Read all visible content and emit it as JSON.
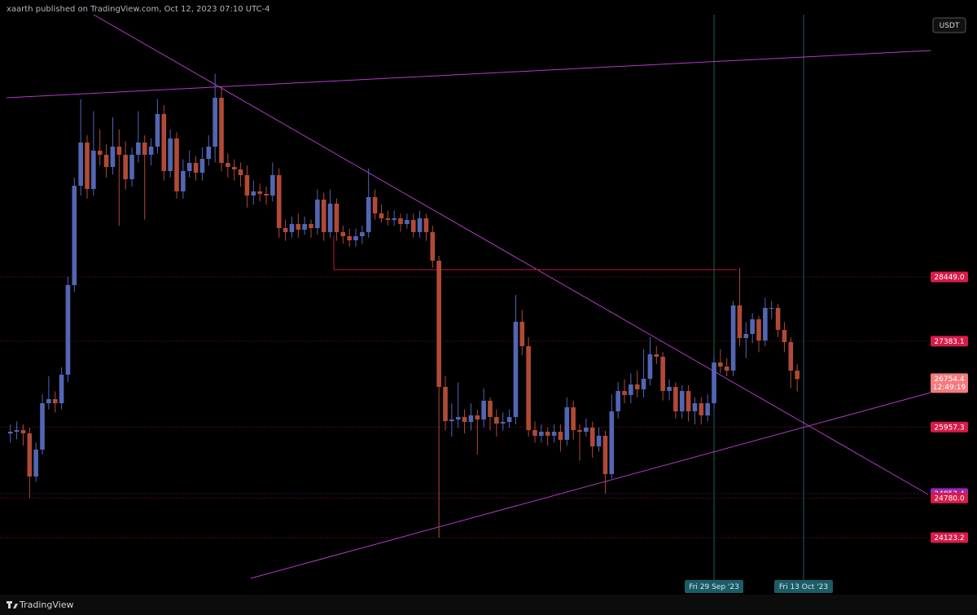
{
  "header": {
    "text": "xaarth published on TradingView.com, Oct 12, 2023 07:10 UTC-4"
  },
  "footer": {
    "logo": "TradingView"
  },
  "chart_data": {
    "type": "candlestick",
    "currency": "USDT",
    "up_color": "#5266b4",
    "down_color": "#b04a36",
    "ylim": [
      23176,
      33046
    ],
    "categories": [
      null,
      null,
      null,
      null,
      null,
      null,
      null,
      null,
      null,
      null,
      null,
      null,
      null,
      null,
      null,
      null,
      null,
      null,
      null,
      null,
      null,
      null,
      null,
      null,
      null,
      null,
      null,
      null,
      null,
      null,
      null,
      null,
      null,
      null,
      null,
      null,
      null,
      null,
      null,
      null,
      null,
      null,
      null,
      null,
      null,
      null,
      null,
      null,
      null,
      null,
      null,
      null,
      null,
      null,
      null,
      null,
      null,
      null,
      null,
      null,
      null,
      null,
      null,
      null,
      null,
      null,
      null,
      null,
      null,
      null,
      null,
      null,
      null,
      null,
      null,
      null,
      null,
      null,
      null,
      null,
      null,
      null,
      null,
      null,
      null,
      null,
      null,
      null,
      null,
      null,
      null,
      null,
      null,
      null,
      null,
      null,
      null,
      null,
      null,
      null,
      null,
      null,
      null,
      null,
      null,
      null,
      null,
      null,
      null,
      null,
      "Fri 29 Sep '23",
      null,
      null,
      null,
      null,
      null,
      null,
      null,
      null,
      null,
      null,
      null,
      null,
      null,
      "Fri 13 Oct '23"
    ],
    "ohlc": [
      [
        25850,
        26000,
        25700,
        25880
      ],
      [
        25880,
        26050,
        25750,
        25907
      ],
      [
        25907,
        26000,
        25650,
        25853
      ],
      [
        25853,
        25950,
        24780,
        25137
      ],
      [
        25137,
        25700,
        25050,
        25583
      ],
      [
        25583,
        26500,
        25500,
        26353
      ],
      [
        26353,
        26800,
        26250,
        26421
      ],
      [
        26421,
        26550,
        26200,
        26353
      ],
      [
        26353,
        26950,
        26250,
        26827
      ],
      [
        26827,
        28450,
        26700,
        28314
      ],
      [
        28314,
        30100,
        28200,
        29963
      ],
      [
        29963,
        31400,
        29800,
        30680
      ],
      [
        30680,
        30800,
        29750,
        29909
      ],
      [
        29909,
        31200,
        29800,
        30545
      ],
      [
        30545,
        30900,
        30300,
        30477
      ],
      [
        30477,
        30650,
        30100,
        30274
      ],
      [
        30274,
        31100,
        30150,
        30612
      ],
      [
        30612,
        30900,
        29300,
        30477
      ],
      [
        30477,
        30700,
        29900,
        30071
      ],
      [
        30071,
        30600,
        29950,
        30477
      ],
      [
        30477,
        31200,
        30350,
        30680
      ],
      [
        30680,
        30800,
        29400,
        30477
      ],
      [
        30477,
        30750,
        30300,
        30612
      ],
      [
        30612,
        31400,
        30500,
        31153
      ],
      [
        31153,
        31300,
        30050,
        30207
      ],
      [
        30207,
        30900,
        30100,
        30747
      ],
      [
        30747,
        30850,
        29750,
        29869
      ],
      [
        29869,
        30400,
        29750,
        30207
      ],
      [
        30207,
        30550,
        30100,
        30342
      ],
      [
        30342,
        30450,
        30050,
        30180
      ],
      [
        30180,
        30600,
        30050,
        30409
      ],
      [
        30409,
        30800,
        30300,
        30612
      ],
      [
        30612,
        31823,
        30350,
        31423
      ],
      [
        31423,
        31600,
        30200,
        30342
      ],
      [
        30342,
        30500,
        30100,
        30274
      ],
      [
        30274,
        30400,
        30050,
        30234
      ],
      [
        30234,
        30350,
        29950,
        30139
      ],
      [
        30139,
        30300,
        29600,
        29801
      ],
      [
        29801,
        30050,
        29650,
        29869
      ],
      [
        29869,
        30000,
        29700,
        29828
      ],
      [
        29828,
        29950,
        29650,
        29801
      ],
      [
        29801,
        30350,
        29700,
        30139
      ],
      [
        30139,
        30250,
        29100,
        29260
      ],
      [
        29260,
        29400,
        29050,
        29193
      ],
      [
        29193,
        29450,
        29100,
        29328
      ],
      [
        29328,
        29500,
        29100,
        29233
      ],
      [
        29233,
        29450,
        29150,
        29328
      ],
      [
        29328,
        29400,
        29100,
        29260
      ],
      [
        29260,
        29900,
        29150,
        29733
      ],
      [
        29733,
        29850,
        29050,
        29193
      ],
      [
        29193,
        29900,
        29100,
        29666
      ],
      [
        29666,
        29750,
        29050,
        29193
      ],
      [
        29193,
        29300,
        29000,
        29125
      ],
      [
        29125,
        29250,
        28950,
        29057
      ],
      [
        29057,
        29250,
        28950,
        29125
      ],
      [
        29125,
        29300,
        29000,
        29193
      ],
      [
        29193,
        30250,
        29100,
        29774
      ],
      [
        29774,
        29900,
        29400,
        29504
      ],
      [
        29504,
        29650,
        29350,
        29422
      ],
      [
        29422,
        29550,
        29300,
        29395
      ],
      [
        29395,
        29550,
        29300,
        29422
      ],
      [
        29422,
        29500,
        29200,
        29328
      ],
      [
        29328,
        29500,
        29250,
        29395
      ],
      [
        29395,
        29500,
        29100,
        29193
      ],
      [
        29193,
        29550,
        29100,
        29422
      ],
      [
        29422,
        29500,
        29050,
        29193
      ],
      [
        29193,
        29300,
        28600,
        28719
      ],
      [
        28719,
        28800,
        24123.2,
        26624
      ],
      [
        26624,
        26800,
        25900,
        26056
      ],
      [
        26056,
        26350,
        25800,
        26083
      ],
      [
        26083,
        26700,
        25950,
        26124
      ],
      [
        26124,
        26250,
        25850,
        26042
      ],
      [
        26042,
        26350,
        25900,
        26151
      ],
      [
        26151,
        26250,
        25500,
        26083
      ],
      [
        26083,
        26600,
        25950,
        26394
      ],
      [
        26394,
        26450,
        25900,
        26124
      ],
      [
        26124,
        26250,
        25800,
        26015
      ],
      [
        26015,
        26200,
        25900,
        26042
      ],
      [
        26042,
        26250,
        25950,
        26124
      ],
      [
        26124,
        28150,
        26000,
        27705
      ],
      [
        27705,
        27900,
        27150,
        27300
      ],
      [
        27300,
        27450,
        25800,
        25907
      ],
      [
        25907,
        26050,
        25700,
        25813
      ],
      [
        25813,
        26000,
        25700,
        25880
      ],
      [
        25880,
        25950,
        25650,
        25813
      ],
      [
        25813,
        26000,
        25700,
        25880
      ],
      [
        25880,
        26000,
        25550,
        25745
      ],
      [
        25745,
        26450,
        25650,
        26286
      ],
      [
        26286,
        26400,
        25750,
        25907
      ],
      [
        25907,
        26000,
        25400,
        25880
      ],
      [
        25880,
        26100,
        25800,
        25948
      ],
      [
        25948,
        26050,
        25450,
        25637
      ],
      [
        25637,
        25950,
        25550,
        25813
      ],
      [
        25813,
        25900,
        24853.4,
        25177
      ],
      [
        25177,
        26500,
        25100,
        26218
      ],
      [
        26218,
        26700,
        26100,
        26556
      ],
      [
        26556,
        26750,
        26350,
        26489
      ],
      [
        26489,
        26850,
        26350,
        26664
      ],
      [
        26664,
        26900,
        26450,
        26583
      ],
      [
        26583,
        27250,
        26450,
        26759
      ],
      [
        26759,
        27450,
        26650,
        27165
      ],
      [
        27165,
        27300,
        27000,
        27124
      ],
      [
        27124,
        27200,
        26400,
        26556
      ],
      [
        26556,
        26750,
        26400,
        26624
      ],
      [
        26624,
        26700,
        26100,
        26218
      ],
      [
        26218,
        26650,
        26100,
        26556
      ],
      [
        26556,
        26650,
        26050,
        26218
      ],
      [
        26218,
        26450,
        26000,
        26353
      ],
      [
        26353,
        26450,
        26000,
        26151
      ],
      [
        26151,
        26500,
        26050,
        26353
      ],
      [
        26353,
        27150,
        26250,
        27029
      ],
      [
        27029,
        27250,
        26850,
        26962
      ],
      [
        26962,
        27100,
        26800,
        26894
      ],
      [
        26894,
        28050,
        26800,
        27976
      ],
      [
        27976,
        28600,
        27300,
        27435
      ],
      [
        27435,
        27700,
        27100,
        27503
      ],
      [
        27503,
        27850,
        27350,
        27746
      ],
      [
        27746,
        27800,
        27200,
        27394
      ],
      [
        27394,
        28100,
        27300,
        27935
      ],
      [
        27935,
        28050,
        27750,
        27935
      ],
      [
        27935,
        28000,
        27450,
        27570
      ],
      [
        27570,
        27700,
        27200,
        27367
      ],
      [
        27367,
        27450,
        26600,
        26894
      ],
      [
        26894,
        27000,
        26550,
        26754.4
      ],
      null
    ],
    "price_lines": [
      {
        "value": 28449,
        "label": "28449.0",
        "color": "#d81b4a"
      },
      {
        "value": 27383.1,
        "color": "#d81b4a"
      },
      {
        "value": 25957.3,
        "color": "#d81b4a"
      },
      {
        "value": 24853.4,
        "color": "#9c27b0"
      },
      {
        "value": 24780,
        "label": "24780.0",
        "color": "#d81b4a"
      },
      {
        "value": 24123.2,
        "color": "#d81b4a"
      }
    ],
    "last_price": {
      "value": 26754.4,
      "countdown": "12:49:19",
      "color": "#f47a7e"
    }
  }
}
